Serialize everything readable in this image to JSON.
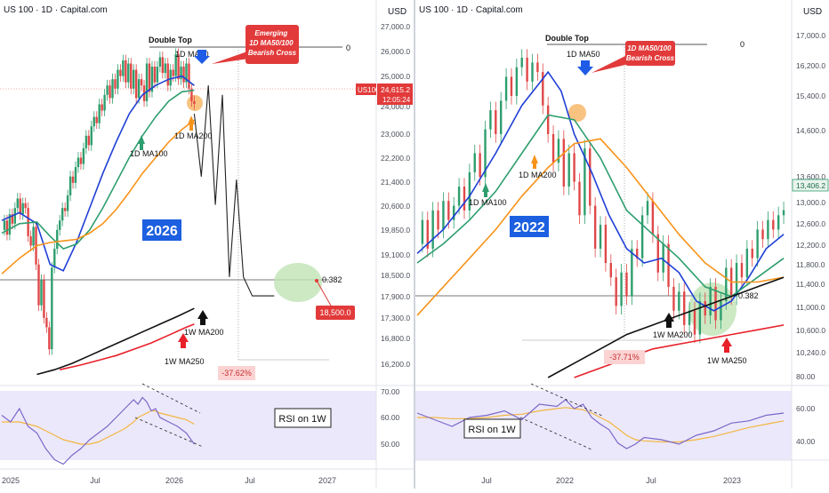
{
  "colors": {
    "ma50": "#1e3fd6",
    "ma100": "#2e9e6e",
    "ma200": "#f7931a",
    "ma200w": "#111111",
    "ma250w": "#e8202a",
    "rsi": "#7b68c8",
    "rsi_ma": "#f2b640",
    "rsi_bg": "#ece8fb",
    "callout_red": "#e23a3a",
    "year_badge": "#1c5fe0",
    "drop_box": "#fbd3d3",
    "fib_circle": "#bfe3b5",
    "candle_up": "#2e9e6e",
    "candle_down": "#e04848"
  },
  "chart_data": [
    {
      "type": "line",
      "panel": "left",
      "title": "US 100 · 1D · Capital.com",
      "currency": "USD",
      "price_axis": [
        "27,000.0",
        "26,000.0",
        "25,000.0",
        "24,000.0",
        "23,000.0",
        "22,200.0",
        "21,400.0",
        "20,600.0",
        "19,850.0",
        "19,100.0",
        "18,500.0",
        "17,900.0",
        "17,300.0",
        "16,800.0",
        "16,200.0"
      ],
      "rsi_axis": [
        "70.00",
        "60.00",
        "50.00"
      ],
      "time_axis": [
        "2025",
        "Jul",
        "2026",
        "Jul",
        "2027"
      ],
      "ylim": [
        15900,
        27300
      ],
      "last_price": {
        "label": "US100",
        "value": "24,615.2",
        "countdown": "12:05:24"
      },
      "annotations": {
        "double_top": "Double Top",
        "double_top_level": "0",
        "ma50_label": "1D MA50",
        "ma100_label": "1D MA100",
        "ma200_label": "1D MA200",
        "cross_callout": "Emerging\n1D MA50/100\nBearish Cross",
        "year_badge": "2026",
        "fib_level": "0.382",
        "target": "18,500.0",
        "drop_pct": "-37.62%",
        "w_ma200": "1W MA200",
        "w_ma250": "1W MA250",
        "rsi_label": "RSI on 1W"
      },
      "series": [
        {
          "name": "Price",
          "key": "price",
          "x": [
            0,
            3,
            6,
            9,
            12,
            15,
            18,
            21,
            24,
            27,
            30,
            33,
            36,
            39,
            42,
            45,
            48,
            51,
            54,
            57,
            60,
            63,
            66,
            69,
            72,
            75,
            78,
            81,
            84,
            87,
            90,
            93,
            96,
            99,
            102,
            105,
            108,
            111,
            114,
            117,
            120,
            123,
            126,
            129,
            132,
            135,
            138,
            141,
            144,
            147,
            150,
            153,
            156,
            159,
            162,
            165,
            168,
            171,
            174,
            177,
            180,
            183,
            186,
            189,
            192,
            195,
            198,
            201,
            204,
            207,
            210,
            213,
            216,
            219
          ],
          "values": [
            20600,
            20900,
            20450,
            21100,
            20800,
            21300,
            21600,
            21100,
            21450,
            21300,
            20400,
            20100,
            20700,
            19500,
            18200,
            19000,
            17800,
            17500,
            16800,
            19400,
            20000,
            20600,
            20900,
            21300,
            21200,
            21700,
            22300,
            22100,
            22600,
            22900,
            22700,
            23200,
            23600,
            23300,
            23900,
            24200,
            24000,
            24600,
            24400,
            24900,
            25200,
            24800,
            25400,
            25100,
            25700,
            25500,
            26000,
            25300,
            25900,
            25100,
            25700,
            24800,
            25400,
            25200,
            24700,
            25900,
            25000,
            25800,
            25300,
            25800,
            26100,
            25600,
            25900,
            25200,
            25700,
            25500,
            26200,
            25400,
            25800,
            25300,
            25900,
            25100,
            24700,
            24615
          ]
        },
        {
          "name": "1D MA50",
          "key": "ma50",
          "x": [
            0,
            20,
            40,
            55,
            70,
            85,
            100,
            115,
            130,
            145,
            160,
            175,
            190,
            205,
            219
          ],
          "values": [
            20900,
            21150,
            20800,
            19500,
            19300,
            20200,
            21300,
            22400,
            23400,
            24300,
            24900,
            25200,
            25400,
            25500,
            25200
          ]
        },
        {
          "name": "1D MA100",
          "key": "ma100",
          "x": [
            0,
            20,
            40,
            55,
            70,
            85,
            100,
            115,
            130,
            145,
            160,
            175,
            190,
            205,
            219
          ],
          "values": [
            20500,
            20800,
            20850,
            20400,
            20000,
            20150,
            20600,
            21300,
            22100,
            22900,
            23600,
            24200,
            24700,
            25000,
            25050
          ]
        },
        {
          "name": "1D MA200",
          "key": "ma200",
          "x": [
            0,
            20,
            40,
            55,
            70,
            85,
            100,
            115,
            130,
            145,
            160,
            175,
            190,
            205,
            219
          ],
          "values": [
            19200,
            19700,
            20100,
            20200,
            20250,
            20300,
            20500,
            20800,
            21250,
            21800,
            22400,
            22900,
            23400,
            23800,
            24100
          ]
        },
        {
          "name": "1W MA200",
          "key": "wma200",
          "x": [
            40,
            60,
            80,
            100,
            120,
            140,
            160,
            180,
            200,
            219
          ],
          "values": [
            16000,
            16150,
            16350,
            16600,
            16850,
            17100,
            17350,
            17600,
            17850,
            18100
          ]
        },
        {
          "name": "1W MA250",
          "key": "wma250",
          "x": [
            66,
            90,
            110,
            130,
            150,
            170,
            190,
            210,
            219
          ],
          "values": [
            16150,
            16300,
            16450,
            16600,
            16800,
            17000,
            17250,
            17500,
            17600
          ]
        },
        {
          "name": "Projection",
          "key": "proj",
          "x": [
            219,
            227,
            235,
            243,
            251,
            259,
            267,
            275,
            285,
            298,
            310
          ],
          "values": [
            24300,
            22300,
            25200,
            21400,
            24900,
            19100,
            22200,
            19100,
            18500,
            18500,
            18500
          ]
        }
      ],
      "rsi": {
        "x": [
          0,
          10,
          20,
          30,
          40,
          50,
          60,
          70,
          80,
          90,
          100,
          110,
          120,
          130,
          140,
          150,
          155,
          160,
          165,
          170,
          175,
          180,
          190,
          200,
          210,
          219
        ],
        "values": [
          63,
          60,
          66,
          58,
          55,
          48,
          43,
          41,
          45,
          48,
          52,
          55,
          58,
          62,
          66,
          70,
          68,
          71,
          69,
          65,
          66,
          62,
          60,
          58,
          55,
          50
        ],
        "ma": [
          60,
          60,
          60,
          59,
          58,
          56,
          54,
          52,
          51,
          50,
          50,
          51,
          53,
          55,
          57,
          60,
          62,
          63,
          64,
          65,
          65,
          64,
          63,
          62,
          61,
          59
        ]
      }
    },
    {
      "type": "line",
      "panel": "right",
      "title": "US 100 · 1D · Capital.com",
      "currency": "USD",
      "price_axis": [
        "17,000.0",
        "16,200.0",
        "15,400.0",
        "14,600.0",
        "13,600.0",
        "13,000.0",
        "12,600.0",
        "12,200.0",
        "11,800.0",
        "11,400.0",
        "11,000.0",
        "10,600.0",
        "10,240.0"
      ],
      "rsi_axis": [
        "80.00",
        "60.00",
        "40.00"
      ],
      "time_axis": [
        "Jul",
        "2022",
        "Jul",
        "2023"
      ],
      "ylim": [
        9900,
        17400
      ],
      "last_price": {
        "value": "13,406.2"
      },
      "annotations": {
        "double_top": "Double Top",
        "double_top_level": "0",
        "ma50_label": "1D MA50",
        "ma100_label": "1D MA100",
        "ma200_label": "1D MA200",
        "cross_callout": "1D MA50/100\nBearish Cross",
        "year_badge": "2022",
        "fib_level": "0.382",
        "drop_pct": "-37.71%",
        "w_ma200": "1W MA200",
        "w_ma250": "1W MA250",
        "rsi_label": "RSI on 1W"
      },
      "series": [
        {
          "name": "Price",
          "key": "price",
          "x": [
            0,
            6,
            12,
            18,
            24,
            30,
            36,
            42,
            48,
            54,
            60,
            66,
            72,
            78,
            84,
            90,
            96,
            102,
            108,
            114,
            120,
            126,
            132,
            138,
            144,
            150,
            156,
            162,
            168,
            174,
            180,
            186,
            192,
            198,
            204,
            210,
            216,
            222,
            228,
            234,
            240,
            246,
            252,
            258,
            264,
            270,
            276,
            282,
            288,
            294,
            300,
            306,
            312,
            318,
            324,
            330,
            336,
            342,
            348,
            354,
            360,
            366,
            372,
            378,
            384,
            390,
            396,
            402,
            408,
            414,
            420
          ],
          "values": [
            12700,
            13200,
            12600,
            13400,
            13000,
            13600,
            13200,
            13500,
            13900,
            13400,
            14200,
            14600,
            14100,
            15100,
            15500,
            15000,
            15700,
            16200,
            15800,
            16400,
            16600,
            16100,
            16500,
            16300,
            15600,
            15000,
            14400,
            14900,
            13900,
            14600,
            14000,
            13300,
            14700,
            13500,
            12600,
            13100,
            12300,
            12000,
            11400,
            12100,
            11600,
            12600,
            12400,
            13300,
            13600,
            12900,
            12100,
            12700,
            11800,
            11300,
            11700,
            11000,
            11300,
            10800,
            11500,
            11200,
            11800,
            11100,
            11500,
            12200,
            11600,
            12300,
            12000,
            12600,
            12400,
            13000,
            12800,
            13200,
            13000,
            13300,
            13406
          ]
        },
        {
          "name": "1D MA50",
          "key": "ma50",
          "x": [
            0,
            30,
            60,
            90,
            120,
            150,
            165,
            180,
            200,
            220,
            240,
            260,
            280,
            300,
            320,
            340,
            360,
            380,
            400,
            420
          ],
          "values": [
            12500,
            13000,
            13700,
            14600,
            15600,
            16300,
            15900,
            15000,
            14200,
            13300,
            12600,
            12300,
            12400,
            12100,
            11500,
            11300,
            11500,
            12000,
            12600,
            12900
          ]
        },
        {
          "name": "1D MA100",
          "key": "ma100",
          "x": [
            0,
            30,
            60,
            90,
            120,
            150,
            180,
            210,
            240,
            270,
            300,
            330,
            360,
            390,
            420
          ],
          "values": [
            12300,
            12700,
            13200,
            13800,
            14600,
            15400,
            15300,
            14500,
            13400,
            12900,
            12400,
            11800,
            11600,
            12000,
            12400
          ]
        },
        {
          "name": "1D MA200",
          "key": "ma200",
          "x": [
            0,
            30,
            60,
            90,
            120,
            150,
            180,
            210,
            240,
            270,
            300,
            330,
            360,
            390,
            420
          ],
          "values": [
            11200,
            11800,
            12400,
            13000,
            13700,
            14300,
            14800,
            14900,
            14300,
            13600,
            12900,
            12300,
            11900,
            11900,
            12000
          ]
        },
        {
          "name": "1W MA200",
          "key": "wma200",
          "x": [
            150,
            180,
            210,
            240,
            270,
            300,
            330,
            360,
            390,
            420
          ],
          "values": [
            9900,
            10200,
            10500,
            10800,
            11000,
            11200,
            11400,
            11600,
            11800,
            12000
          ]
        },
        {
          "name": "1W MA250",
          "key": "wma250",
          "x": [
            180,
            210,
            240,
            270,
            300,
            330,
            360,
            390,
            420
          ],
          "values": [
            9900,
            10100,
            10300,
            10500,
            10600,
            10700,
            10800,
            10900,
            11000
          ]
        }
      ],
      "rsi": {
        "x": [
          0,
          20,
          40,
          60,
          80,
          100,
          120,
          140,
          160,
          170,
          180,
          190,
          200,
          210,
          220,
          230,
          240,
          250,
          260,
          280,
          300,
          320,
          340,
          360,
          380,
          400,
          420
        ],
        "values": [
          62,
          56,
          50,
          58,
          60,
          64,
          56,
          70,
          68,
          74,
          66,
          70,
          58,
          52,
          47,
          35,
          30,
          34,
          40,
          38,
          34,
          42,
          46,
          53,
          55,
          60,
          62
        ],
        "ma": [
          58,
          58,
          57,
          57,
          58,
          60,
          61,
          64,
          66,
          67,
          66,
          65,
          62,
          58,
          54,
          48,
          42,
          38,
          37,
          36,
          36,
          38,
          41,
          45,
          49,
          52,
          55
        ]
      }
    }
  ]
}
